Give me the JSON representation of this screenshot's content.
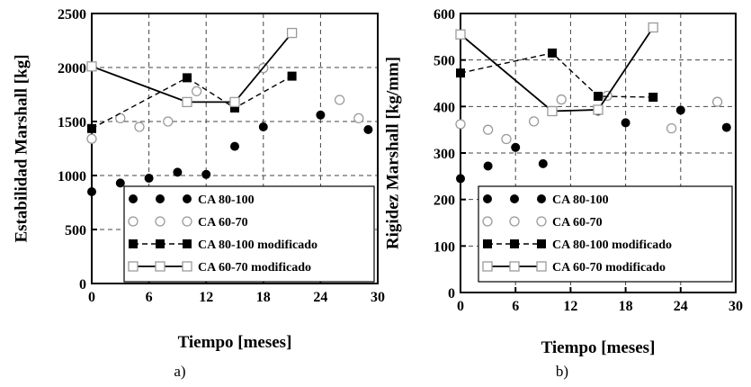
{
  "chart_data": [
    {
      "type": "scatter",
      "caption": "a)",
      "xlabel": "Tiempo [meses]",
      "ylabel": "Estabilidad Marshall [kg]",
      "xlim": [
        0,
        30
      ],
      "ylim": [
        0,
        2500
      ],
      "xticks": [
        "0",
        "6",
        "12",
        "18",
        "24",
        "30"
      ],
      "yticks": [
        "0",
        "500",
        "1000",
        "1500",
        "2000",
        "2500"
      ],
      "xtick_values": [
        0,
        6,
        12,
        18,
        24,
        30
      ],
      "ytick_values": [
        0,
        500,
        1000,
        1500,
        2000,
        2500
      ],
      "grid": true,
      "legend_position": "bottom-right",
      "series": [
        {
          "name": "CA 80-100",
          "style": "filled-circle",
          "x": [
            0,
            3,
            6,
            9,
            12,
            15,
            18,
            24,
            29
          ],
          "y": [
            850,
            930,
            975,
            1030,
            1010,
            1270,
            1450,
            1560,
            1425
          ]
        },
        {
          "name": "CA 60-70",
          "style": "open-circle",
          "x": [
            0,
            3,
            5,
            8,
            11,
            18,
            21,
            26,
            28
          ],
          "y": [
            1340,
            1530,
            1450,
            1500,
            1780,
            1995,
            2320,
            1700,
            1530
          ]
        },
        {
          "name": "CA 80-100 modificado",
          "style": "dashed-square",
          "x": [
            0,
            10,
            15,
            21
          ],
          "y": [
            1435,
            1905,
            1625,
            1920
          ]
        },
        {
          "name": "CA 60-70 modificado",
          "style": "solid-open-square",
          "x": [
            0,
            10,
            15,
            21
          ],
          "y": [
            2010,
            1680,
            1680,
            2320
          ]
        }
      ]
    },
    {
      "type": "scatter",
      "caption": "b)",
      "xlabel": "Tiempo [meses]",
      "ylabel": "Rigidez Marshall [kg/mm]",
      "xlim": [
        0,
        30
      ],
      "ylim": [
        0,
        600
      ],
      "xticks": [
        "0",
        "6",
        "12",
        "18",
        "24",
        "30"
      ],
      "yticks": [
        "0",
        "100",
        "200",
        "300",
        "400",
        "500",
        "600"
      ],
      "xtick_values": [
        0,
        6,
        12,
        18,
        24,
        30
      ],
      "ytick_values": [
        0,
        100,
        200,
        300,
        400,
        500,
        600
      ],
      "grid": true,
      "legend_position": "bottom-right",
      "series": [
        {
          "name": "CA 80-100",
          "style": "filled-circle",
          "x": [
            0,
            3,
            6,
            9,
            15,
            18,
            24,
            29
          ],
          "y": [
            245,
            272,
            312,
            277,
            390,
            365,
            392,
            355
          ]
        },
        {
          "name": "CA 60-70",
          "style": "open-circle",
          "x": [
            0,
            3,
            5,
            8,
            11,
            16,
            23,
            28
          ],
          "y": [
            362,
            350,
            330,
            368,
            415,
            423,
            353,
            410
          ]
        },
        {
          "name": "CA 80-100 modificado",
          "style": "dashed-square",
          "x": [
            0,
            10,
            15,
            21
          ],
          "y": [
            472,
            515,
            422,
            420
          ]
        },
        {
          "name": "CA 60-70 modificado",
          "style": "solid-open-square",
          "x": [
            0,
            10,
            15,
            21
          ],
          "y": [
            555,
            390,
            393,
            570
          ]
        }
      ]
    }
  ],
  "style": {
    "frame_color": "#000000",
    "grid_color": "#444444",
    "open_marker_color": "#9a9a9a"
  }
}
